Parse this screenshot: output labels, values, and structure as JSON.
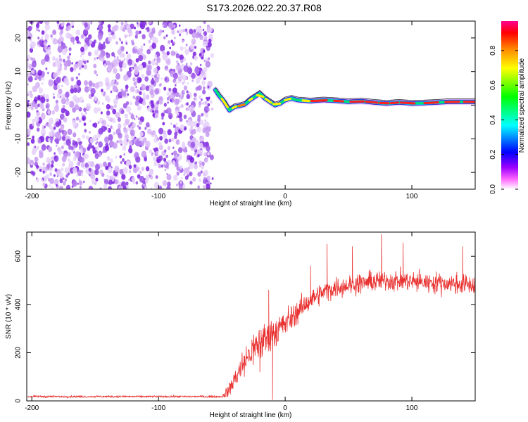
{
  "title": "S173.2026.022.20.37.R08",
  "chart_data": [
    {
      "type": "heatmap",
      "name": "spectrogram",
      "xlabel": "Height of straight line (km)",
      "ylabel": "Frequency (Hz)",
      "xlim": [
        -204,
        150
      ],
      "ylim": [
        -25,
        25
      ],
      "xticks": [
        -200,
        -100,
        0,
        100
      ],
      "yticks": [
        -20,
        -10,
        0,
        10,
        20
      ],
      "noise_region_x": [
        -204,
        -56
      ],
      "signal_track": {
        "x": [
          -55,
          -52,
          -48,
          -44,
          -40,
          -36,
          -32,
          -28,
          -24,
          -20,
          -16,
          -12,
          -8,
          -4,
          0,
          5,
          10,
          20,
          30,
          40,
          50,
          60,
          70,
          80,
          90,
          100,
          110,
          120,
          130,
          140,
          150
        ],
        "y": [
          4.5,
          2.8,
          1.0,
          -1.5,
          -0.5,
          -0.2,
          0.2,
          1.5,
          2.5,
          3.5,
          2.0,
          1.0,
          0.0,
          0.5,
          1.5,
          2.0,
          1.5,
          1.2,
          1.5,
          1.3,
          1.0,
          1.2,
          0.8,
          0.5,
          0.8,
          0.5,
          0.6,
          0.8,
          1.0,
          1.0,
          1.0
        ]
      }
    },
    {
      "type": "line",
      "name": "snr",
      "xlabel": "Height of straight line (km)",
      "ylabel": "SNR (10 * v/v)",
      "xlim": [
        -204,
        150
      ],
      "ylim": [
        0,
        700
      ],
      "xticks": [
        -200,
        -100,
        0,
        100
      ],
      "yticks": [
        0,
        200,
        400,
        600
      ],
      "color": "#e8302f",
      "envelope": {
        "x": [
          -204,
          -50,
          -45,
          -40,
          -30,
          -20,
          -10,
          0,
          10,
          20,
          30,
          40,
          50,
          60,
          80,
          100,
          120,
          150
        ],
        "mean": [
          18,
          18,
          40,
          90,
          180,
          240,
          280,
          320,
          370,
          420,
          450,
          470,
          480,
          490,
          500,
          495,
          490,
          480
        ],
        "noise": [
          4,
          4,
          25,
          45,
          60,
          75,
          70,
          55,
          45,
          40,
          40,
          40,
          40,
          40,
          40,
          40,
          40,
          40
        ]
      },
      "peaks": [
        {
          "x": -13,
          "y": 460
        },
        {
          "x": 20,
          "y": 560
        },
        {
          "x": 33,
          "y": 650
        },
        {
          "x": 53,
          "y": 640
        },
        {
          "x": 76,
          "y": 690
        },
        {
          "x": 93,
          "y": 655
        },
        {
          "x": 140,
          "y": 640
        }
      ],
      "dips": [
        {
          "x": -10,
          "y": 5
        },
        {
          "x": -20,
          "y": 120
        }
      ]
    }
  ],
  "colorbar": {
    "label": "Normalized spectral amplitude",
    "ticks": [
      "0.0",
      "0.2",
      "0.4",
      "0.6",
      "0.8"
    ],
    "tick_values": [
      0.0,
      0.2,
      0.4,
      0.6,
      0.8
    ],
    "range": [
      0,
      0.97
    ],
    "colors": [
      "#ffffff",
      "#ff00ff",
      "#0000ff",
      "#00ffff",
      "#00ff00",
      "#ffff00",
      "#ff8000",
      "#ff0000",
      "#ff00a0"
    ]
  }
}
